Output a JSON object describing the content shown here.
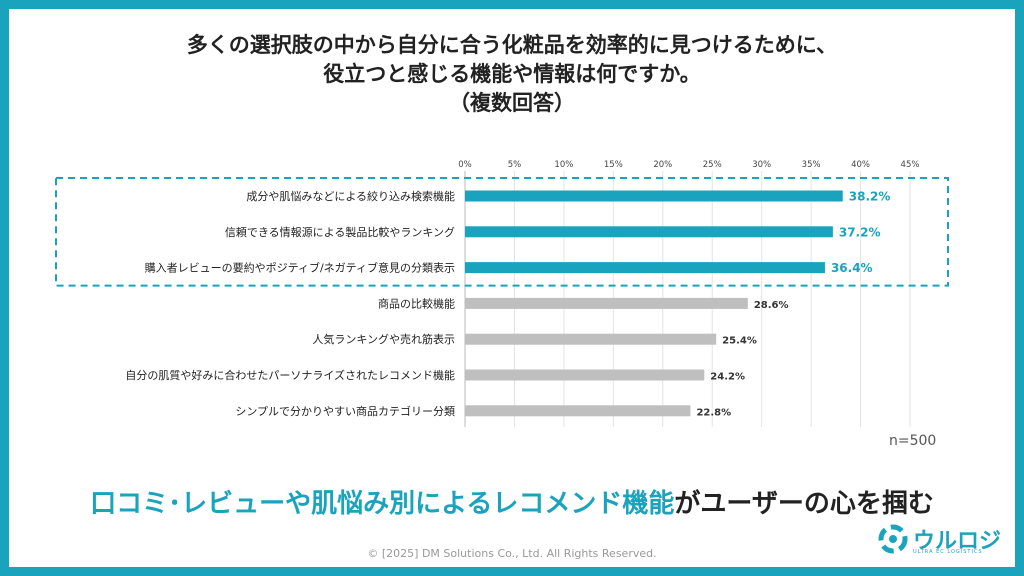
{
  "title": {
    "line1": "多くの選択肢の中から自分に合う化粧品を効率的に見つけるために、",
    "line2": "役立つと感じる機能や情報は何ですか。",
    "line3": "（複数回答）"
  },
  "chart_data": {
    "type": "bar",
    "orientation": "horizontal",
    "xlim": [
      0,
      45
    ],
    "ticks": [
      "0%",
      "5%",
      "10%",
      "15%",
      "20%",
      "25%",
      "30%",
      "35%",
      "40%",
      "45%"
    ],
    "categories": [
      "成分や肌悩みなどによる絞り込み検索機能",
      "信頼できる情報源による製品比較やランキング",
      "購入者レビューの要約やポジティブ/ネガティブ意見の分類表示",
      "商品の比較機能",
      "人気ランキングや売れ筋表示",
      "自分の肌質や好みに合わせたパーソナライズされたレコメンド機能",
      "シンプルで分かりやすい商品カテゴリー分類"
    ],
    "values": [
      38.2,
      37.2,
      36.4,
      28.6,
      25.4,
      24.2,
      22.8
    ],
    "value_labels": [
      "38.2%",
      "37.2%",
      "36.4%",
      "28.6%",
      "25.4%",
      "24.2%",
      "22.8%"
    ],
    "highlighted": [
      true,
      true,
      true,
      false,
      false,
      false,
      false
    ],
    "colors": {
      "highlight": "#1aa3bd",
      "normal": "#bfbfbf",
      "frame": "#1aa3bd"
    },
    "grid": true
  },
  "sample_size": "n=500",
  "headline": {
    "highlight": "口コミ･レビューや肌悩み別によるレコメンド機能",
    "rest": "がユーザーの心を掴む"
  },
  "copyright": "© [2025] DM Solutions Co., Ltd. All Rights Reserved.",
  "logo": {
    "name": "ウルロジ",
    "sub": "ULTRA EC LOGISTICS"
  }
}
